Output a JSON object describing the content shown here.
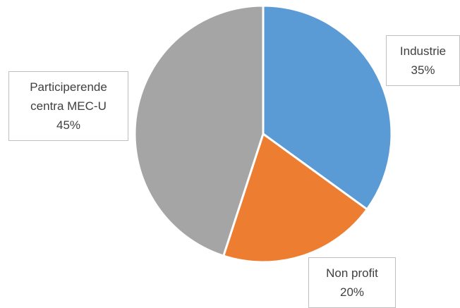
{
  "chart_data": {
    "type": "pie",
    "categories": [
      "Industrie",
      "Non profit",
      "Participerende centra MEC-U"
    ],
    "values": [
      35,
      20,
      45
    ],
    "value_labels": [
      "35%",
      "20%",
      "45%"
    ],
    "colors": [
      "#5b9bd5",
      "#ed7d31",
      "#a5a5a5"
    ],
    "start_angle": 0,
    "direction": "clockwise"
  }
}
